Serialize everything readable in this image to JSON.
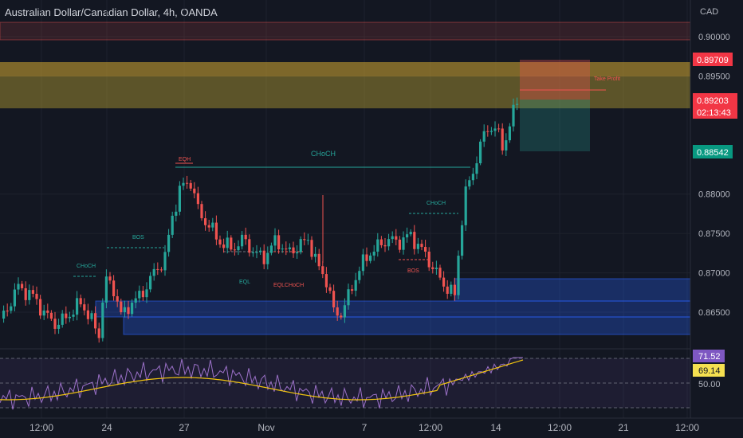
{
  "header": {
    "title": "Australian Dollar/Canadian Dollar, 4h, OANDA"
  },
  "colors": {
    "background": "#131722",
    "up": "#26a69a",
    "down": "#ef5350",
    "supply_zone": "#b5a032",
    "demand_zone": "#2962ff",
    "rsi_line": "#9c71c9",
    "rsi_ma": "#f1c40f"
  },
  "price_axis": {
    "currency": "CAD",
    "ticks": [
      {
        "label": "0.90000",
        "value": 0.9
      },
      {
        "label": "0.89500",
        "value": 0.895
      },
      {
        "label": "0.88000",
        "value": 0.88
      },
      {
        "label": "0.87500",
        "value": 0.875
      },
      {
        "label": "0.87000",
        "value": 0.87
      },
      {
        "label": "0.86500",
        "value": 0.865
      }
    ],
    "badges": {
      "target": {
        "label": "0.89709",
        "value": 0.89709
      },
      "current": {
        "label": "0.89203",
        "value": 0.89203,
        "countdown": "02:13:43"
      },
      "stop": {
        "label": "0.88542",
        "value": 0.88542
      }
    }
  },
  "rsi_axis": {
    "value_label": "71.52",
    "ma_label": "69.14",
    "level_label": "50.00"
  },
  "time_axis": {
    "labels": [
      "12:00",
      "24",
      "27",
      "Nov",
      "7",
      "12:00",
      "14",
      "12:00",
      "21",
      "12:00"
    ]
  },
  "annotations": {
    "choch_1": "CHoCH",
    "bos_1": "BOS",
    "eqh": "EQH",
    "choch_main": "CHoCH",
    "eql": "EQL",
    "eql_choch": "EQLCHoCH",
    "choch_2": "CHoCH",
    "bos_2": "BOS",
    "position_label": "Take Profit"
  }
}
